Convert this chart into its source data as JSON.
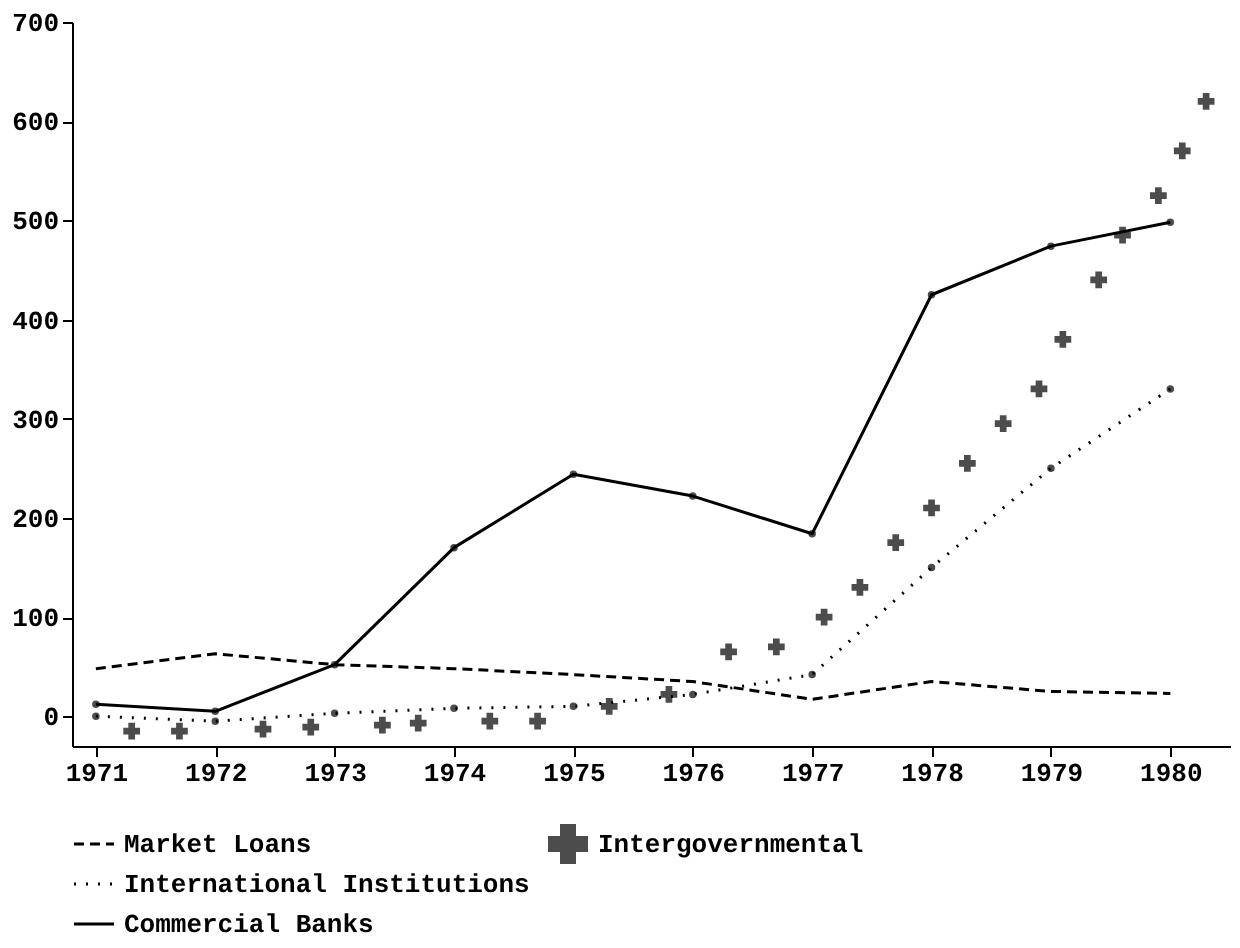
{
  "chart_data": {
    "type": "line",
    "x": [
      1971,
      1972,
      1973,
      1974,
      1975,
      1976,
      1977,
      1978,
      1979,
      1980
    ],
    "series": [
      {
        "name": "Market Loans",
        "color": "#000000",
        "line_style": "dashed",
        "marker": "none",
        "values": [
          48,
          63,
          52,
          48,
          42,
          35,
          17,
          35,
          25,
          23
        ]
      },
      {
        "name": "International Institutions",
        "color": "#000000",
        "line_style": "dotted",
        "marker": "circle",
        "values": [
          0,
          -5,
          3,
          8,
          10,
          22,
          42,
          150,
          250,
          330
        ]
      },
      {
        "name": "Commercial Banks",
        "color": "#000000",
        "line_style": "solid",
        "marker": "circle",
        "values": [
          12,
          5,
          52,
          170,
          244,
          222,
          184,
          425,
          474,
          498
        ]
      },
      {
        "name": "Intergovernmental",
        "type": "scatter",
        "color": "#000000",
        "marker": "cross",
        "x": [
          1971.3,
          1971.7,
          1972.4,
          1972.8,
          1973.4,
          1973.7,
          1974.3,
          1974.7,
          1975.3,
          1975.8,
          1976.3,
          1976.7,
          1977.1,
          1977.4,
          1977.7,
          1978.0,
          1978.3,
          1978.6,
          1978.9,
          1979.1,
          1979.4,
          1979.6,
          1979.9,
          1980.1,
          1980.3
        ],
        "values": [
          -15,
          -15,
          -13,
          -11,
          -9,
          -7,
          -5,
          -5,
          10,
          22,
          65,
          70,
          100,
          130,
          175,
          210,
          255,
          295,
          330,
          380,
          440,
          485,
          525,
          570,
          620
        ]
      }
    ],
    "xlim": [
      1970.8,
      1980.5
    ],
    "xticks": [
      1971,
      1972,
      1973,
      1974,
      1975,
      1976,
      1977,
      1978,
      1979,
      1980
    ],
    "ylim": [
      -30,
      700
    ],
    "yticks": [
      0,
      100,
      200,
      300,
      400,
      500,
      600,
      700
    ],
    "grid": false,
    "legend": "bottom"
  }
}
